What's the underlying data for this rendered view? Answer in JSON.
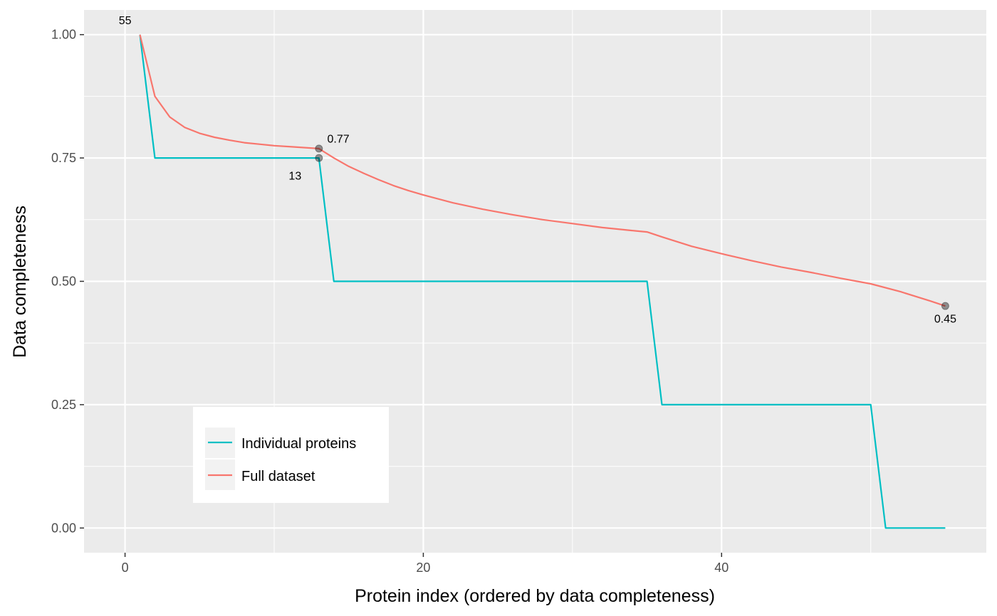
{
  "chart_data": {
    "type": "line",
    "xlabel": "Protein index (ordered by data completeness)",
    "ylabel": "Data completeness",
    "xlim": [
      -2.75,
      57.75
    ],
    "ylim": [
      -0.05,
      1.05
    ],
    "x_ticks": [
      0,
      20,
      40
    ],
    "x_tick_labels": [
      "0",
      "20",
      "40"
    ],
    "y_ticks": [
      0,
      0.25,
      0.5,
      0.75,
      1.0
    ],
    "y_tick_labels": [
      "0.00",
      "0.25",
      "0.50",
      "0.75",
      "1.00"
    ],
    "grid": true,
    "legend_position": "bottom-left",
    "series": [
      {
        "name": "Individual proteins",
        "color": "#00bfc4",
        "points": [
          [
            1,
            1.0
          ],
          [
            2,
            0.75
          ],
          [
            13,
            0.75
          ],
          [
            14,
            0.5
          ],
          [
            35,
            0.5
          ],
          [
            36,
            0.25
          ],
          [
            50,
            0.25
          ],
          [
            51,
            0.0
          ],
          [
            55,
            0.0
          ]
        ]
      },
      {
        "name": "Full dataset",
        "color": "#f8766d",
        "points": [
          [
            1,
            1.0
          ],
          [
            2,
            0.875
          ],
          [
            3,
            0.833
          ],
          [
            4,
            0.812
          ],
          [
            5,
            0.8
          ],
          [
            6,
            0.792
          ],
          [
            7,
            0.786
          ],
          [
            8,
            0.781
          ],
          [
            9,
            0.778
          ],
          [
            10,
            0.775
          ],
          [
            11,
            0.773
          ],
          [
            12,
            0.771
          ],
          [
            13,
            0.769
          ],
          [
            14,
            0.75
          ],
          [
            15,
            0.733
          ],
          [
            16,
            0.719
          ],
          [
            17,
            0.706
          ],
          [
            18,
            0.694
          ],
          [
            19,
            0.684
          ],
          [
            20,
            0.675
          ],
          [
            22,
            0.659
          ],
          [
            24,
            0.646
          ],
          [
            26,
            0.635
          ],
          [
            28,
            0.625
          ],
          [
            30,
            0.617
          ],
          [
            32,
            0.609
          ],
          [
            34,
            0.603
          ],
          [
            35,
            0.6
          ],
          [
            36,
            0.59
          ],
          [
            38,
            0.571
          ],
          [
            40,
            0.556
          ],
          [
            42,
            0.542
          ],
          [
            44,
            0.529
          ],
          [
            46,
            0.518
          ],
          [
            48,
            0.506
          ],
          [
            50,
            0.495
          ],
          [
            52,
            0.479
          ],
          [
            54,
            0.46
          ],
          [
            55,
            0.45
          ]
        ]
      }
    ],
    "highlight_points": [
      {
        "x": 13,
        "y": 0.769
      },
      {
        "x": 13,
        "y": 0.75
      },
      {
        "x": 55,
        "y": 0.45
      }
    ],
    "annotations": [
      {
        "text": "55",
        "x": 0,
        "y": 1.03,
        "color": "#999999"
      },
      {
        "text": "0.77",
        "x": 14.3,
        "y": 0.79,
        "color": "#000000"
      },
      {
        "text": "13",
        "x": 11.4,
        "y": 0.715,
        "color": "#000000"
      },
      {
        "text": "0.45",
        "x": 55,
        "y": 0.425,
        "color": "#000000"
      }
    ],
    "plot_background": "#ebebeb",
    "grid_color": "#ffffff"
  }
}
